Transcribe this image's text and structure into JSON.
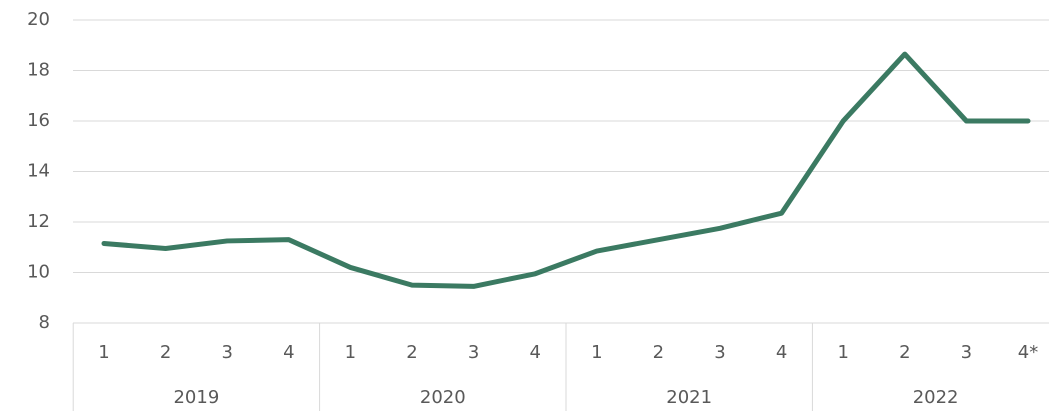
{
  "chart_data": {
    "type": "line",
    "categories": [
      "1",
      "2",
      "3",
      "4",
      "1",
      "2",
      "3",
      "4",
      "1",
      "2",
      "3",
      "4",
      "1",
      "2",
      "3",
      "4*"
    ],
    "category_groups": [
      "2019",
      "2020",
      "2021",
      "2022"
    ],
    "series": [
      {
        "color": "#3b7a62",
        "values": [
          11.15,
          10.95,
          11.25,
          11.3,
          10.2,
          9.5,
          9.45,
          9.95,
          10.85,
          11.3,
          11.75,
          12.35,
          16,
          18.65,
          16,
          16
        ]
      }
    ],
    "ylim": [
      8,
      20
    ],
    "yticks": [
      8,
      10,
      12,
      14,
      16,
      18,
      20
    ],
    "grid": true
  }
}
